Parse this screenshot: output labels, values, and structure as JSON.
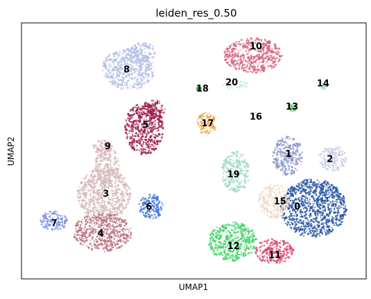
{
  "chart_data": {
    "type": "scatter",
    "title": "leiden_res_0.50",
    "xlabel": "UMAP1",
    "ylabel": "UMAP2",
    "xlim": [
      0,
      100
    ],
    "ylim": [
      0,
      100
    ],
    "grid": false,
    "legend": "on data",
    "ticks": "none",
    "clusters": [
      {
        "label": "0",
        "color": "#1f4fa0",
        "center": [
          80.0,
          28.5
        ]
      },
      {
        "label": "1",
        "color": "#8b96c6",
        "center": [
          77.5,
          49.0
        ]
      },
      {
        "label": "2",
        "color": "#c7cbe4",
        "center": [
          89.5,
          47.0
        ]
      },
      {
        "label": "3",
        "color": "#d4b7b7",
        "center": [
          24.5,
          33.5
        ]
      },
      {
        "label": "4",
        "color": "#b8707e",
        "center": [
          23.0,
          18.0
        ]
      },
      {
        "label": "5",
        "color": "#9c1a4a",
        "center": [
          36.0,
          60.5
        ]
      },
      {
        "label": "6",
        "color": "#3e6fd8",
        "center": [
          37.0,
          28.5
        ]
      },
      {
        "label": "7",
        "color": "#6f8be0",
        "center": [
          9.5,
          22.0
        ]
      },
      {
        "label": "8",
        "color": "#b3bde6",
        "center": [
          30.5,
          82.0
        ]
      },
      {
        "label": "9",
        "color": "#e0a9b9",
        "center": [
          25.0,
          52.0
        ]
      },
      {
        "label": "10",
        "color": "#d45f7c",
        "center": [
          68.0,
          91.0
        ]
      },
      {
        "label": "11",
        "color": "#d8466e",
        "center": [
          73.5,
          9.5
        ]
      },
      {
        "label": "12",
        "color": "#3cd166",
        "center": [
          61.5,
          13.0
        ]
      },
      {
        "label": "13",
        "color": "#72c973",
        "center": [
          78.5,
          67.5
        ]
      },
      {
        "label": "14",
        "color": "#b5e0c1",
        "center": [
          87.5,
          76.5
        ]
      },
      {
        "label": "15",
        "color": "#efd8c6",
        "center": [
          75.0,
          30.5
        ]
      },
      {
        "label": "16",
        "color": "#e9e9ec",
        "center": [
          68.0,
          63.5
        ]
      },
      {
        "label": "17",
        "color": "#e8a339",
        "center": [
          54.0,
          61.0
        ]
      },
      {
        "label": "18",
        "color": "#2ea043",
        "center": [
          52.5,
          74.5
        ]
      },
      {
        "label": "19",
        "color": "#9ed9c6",
        "center": [
          61.5,
          41.0
        ]
      },
      {
        "label": "20",
        "color": "#cdeedd",
        "center": [
          61.0,
          77.0
        ]
      }
    ]
  }
}
